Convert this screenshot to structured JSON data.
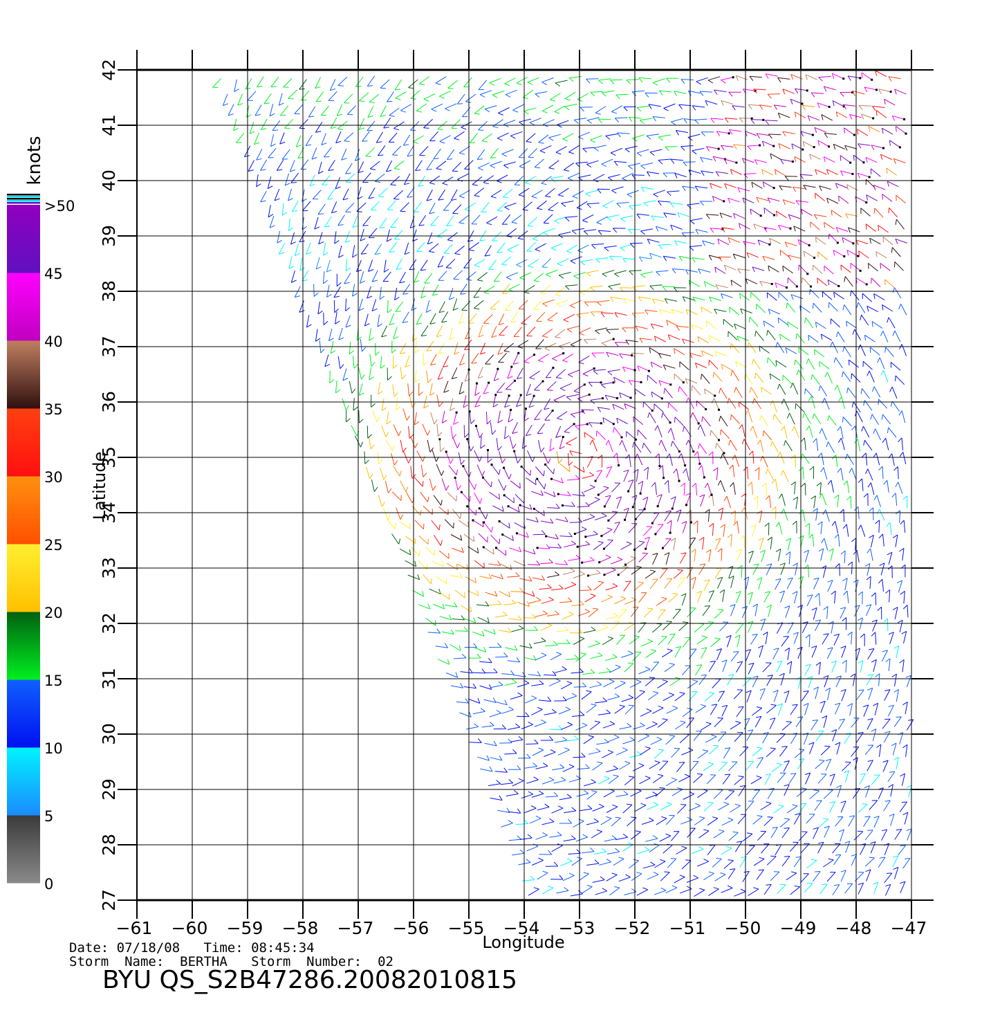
{
  "map": {
    "lon_min": -61,
    "lon_max": -47,
    "lat_min": 27,
    "lat_max": 42,
    "lon_ticks": [
      "-61",
      "-60",
      "-59",
      "-58",
      "-57",
      "-56",
      "-55",
      "-54",
      "-53",
      "-52",
      "-51",
      "-50",
      "-49",
      "-48",
      "-47"
    ],
    "lat_ticks": [
      "27",
      "28",
      "29",
      "30",
      "31",
      "32",
      "33",
      "34",
      "35",
      "36",
      "37",
      "38",
      "39",
      "40",
      "41",
      "42"
    ],
    "xlabel": "Longitude",
    "ylabel": "Latitude",
    "grid": true,
    "field": "wind barbs",
    "swath_edge": [
      [
        -59.5,
        42
      ],
      [
        -53.9,
        27
      ]
    ],
    "storm_center": [
      -53,
      35
    ]
  },
  "legend": {
    "title": "knots",
    "labels": [
      ">50",
      "45",
      "40",
      "35",
      "30",
      "25",
      "20",
      "15",
      "10",
      "5",
      "0"
    ],
    "bands": [
      {
        "from": 0,
        "to": 5,
        "top": "#3a3a3a",
        "bottom": "#8a8a8a"
      },
      {
        "from": 5,
        "to": 10,
        "top": "#00f4ff",
        "bottom": "#1a8aff"
      },
      {
        "from": 10,
        "to": 15,
        "top": "#1060ff",
        "bottom": "#0010f0"
      },
      {
        "from": 15,
        "to": 20,
        "top": "#006010",
        "bottom": "#00f020"
      },
      {
        "from": 20,
        "to": 25,
        "top": "#fff030",
        "bottom": "#ffc000"
      },
      {
        "from": 25,
        "to": 30,
        "top": "#ff9010",
        "bottom": "#ff5000"
      },
      {
        "from": 30,
        "to": 35,
        "top": "#ff4010",
        "bottom": "#ff1010"
      },
      {
        "from": 35,
        "to": 40,
        "top": "#c08060",
        "bottom": "#301010"
      },
      {
        "from": 40,
        "to": 45,
        "top": "#ff00ff",
        "bottom": "#c000c0"
      },
      {
        "from": 45,
        "to": 50,
        "top": "#9000c0",
        "bottom": "#6010c0"
      }
    ]
  },
  "info": {
    "line1": "Date: 07/18/08   Time: 08:45:34",
    "line2": "Storm  Name:  BERTHA   Storm  Number:  02",
    "product": "BYU  QS_S2B47286.20082010815"
  }
}
